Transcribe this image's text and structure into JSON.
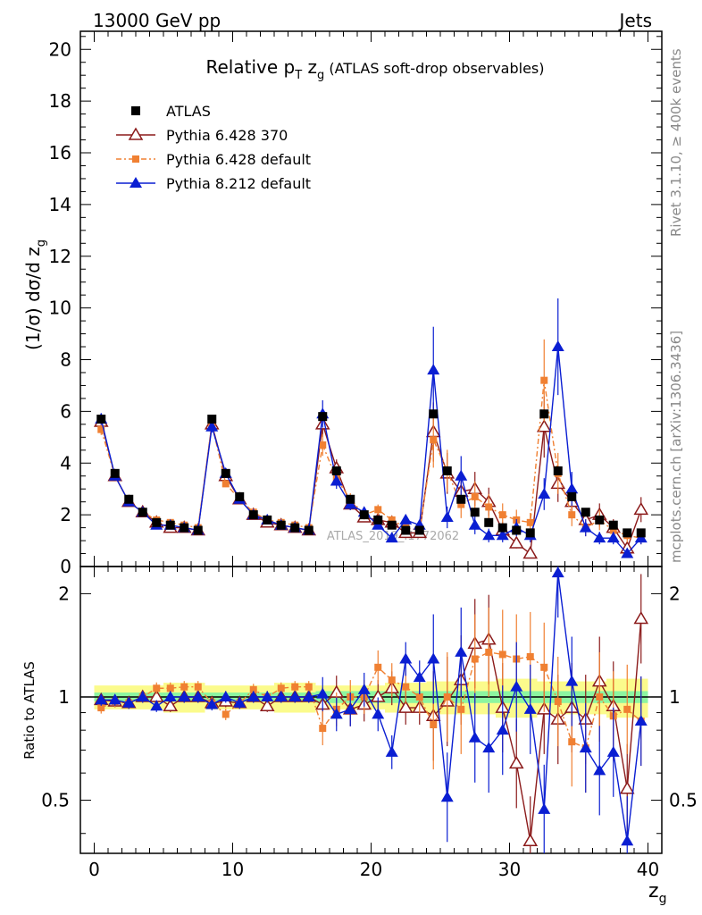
{
  "header": {
    "left": "13000 GeV pp",
    "right": "Jets",
    "side_rivet": "Rivet 3.1.10, ≥ 400k events",
    "side_mcplots": "mcplots.cern.ch [arXiv:1306.3436]",
    "watermark": "ATLAS_2019_I1772062"
  },
  "chart_data": {
    "type": "scatter",
    "title_main": "Relative p",
    "title_sub": "T",
    "title_zg": " z",
    "title_g": "g",
    "title_rest": " (ATLAS soft-drop observables)",
    "ylabel_main": "(1/σ) dσ/d z",
    "ylabel_sub": "g",
    "xlabel": "z",
    "xlabel_sub": "g",
    "ratio_ylabel": "Ratio to ATLAS",
    "xlim": [
      -1,
      41
    ],
    "ylim": [
      0,
      20.7
    ],
    "ratio_ylim": [
      0.35,
      2.4
    ],
    "x_ticks": [
      "0",
      "10",
      "20",
      "30",
      "40"
    ],
    "y_ticks": [
      "0",
      "2",
      "4",
      "6",
      "8",
      "10",
      "12",
      "14",
      "16",
      "18",
      "20"
    ],
    "ratio_ticks": [
      "0.5",
      "1",
      "2"
    ],
    "x": [
      0.5,
      1.5,
      2.5,
      3.5,
      4.5,
      5.5,
      6.5,
      7.5,
      8.5,
      9.5,
      10.5,
      11.5,
      12.5,
      13.5,
      14.5,
      15.5,
      16.5,
      17.5,
      18.5,
      19.5,
      20.5,
      21.5,
      22.5,
      23.5,
      24.5,
      25.5,
      26.5,
      27.5,
      28.5,
      29.5,
      30.5,
      31.5,
      32.5,
      33.5,
      34.5,
      35.5,
      36.5,
      37.5,
      38.5,
      39.5
    ],
    "series": [
      {
        "name": "ATLAS",
        "color": "#000000",
        "values": [
          5.7,
          3.6,
          2.6,
          2.1,
          1.7,
          1.6,
          1.5,
          1.4,
          5.7,
          3.6,
          2.7,
          2.0,
          1.8,
          1.6,
          1.5,
          1.4,
          5.8,
          3.7,
          2.6,
          2.0,
          1.8,
          1.6,
          1.4,
          1.4,
          5.9,
          3.7,
          2.6,
          2.1,
          1.7,
          1.5,
          1.4,
          1.3,
          5.9,
          3.7,
          2.7,
          2.1,
          1.8,
          1.6,
          1.3,
          1.3
        ]
      },
      {
        "name": "Pythia 6.428 370",
        "color": "#8b1a1a",
        "values": [
          5.6,
          3.5,
          2.5,
          2.1,
          1.7,
          1.5,
          1.5,
          1.4,
          5.5,
          3.5,
          2.6,
          2.0,
          1.7,
          1.6,
          1.5,
          1.4,
          5.5,
          3.8,
          2.4,
          1.9,
          1.8,
          1.7,
          1.3,
          1.3,
          5.2,
          3.6,
          2.9,
          3.0,
          2.5,
          1.4,
          0.9,
          0.5,
          5.4,
          3.2,
          2.5,
          1.8,
          2.0,
          1.5,
          0.7,
          2.2
        ]
      },
      {
        "name": "Pythia 6.428 default",
        "color": "#f08032",
        "values": [
          5.3,
          3.5,
          2.5,
          2.1,
          1.8,
          1.7,
          1.6,
          1.5,
          5.5,
          3.2,
          2.6,
          2.1,
          1.8,
          1.7,
          1.6,
          1.5,
          4.7,
          3.4,
          2.6,
          2.0,
          2.2,
          1.8,
          1.5,
          1.4,
          4.9,
          3.7,
          2.4,
          2.7,
          2.3,
          2.0,
          1.8,
          1.7,
          7.2,
          3.6,
          2.0,
          1.5,
          1.8,
          1.4,
          1.2,
          1.1
        ]
      },
      {
        "name": "Pythia 8.212 default",
        "color": "#0a1ed2",
        "values": [
          5.7,
          3.5,
          2.5,
          2.1,
          1.6,
          1.6,
          1.5,
          1.4,
          5.4,
          3.6,
          2.6,
          2.0,
          1.8,
          1.6,
          1.5,
          1.4,
          5.9,
          3.3,
          2.4,
          2.1,
          1.6,
          1.1,
          1.8,
          1.6,
          7.6,
          1.9,
          3.5,
          1.6,
          1.2,
          1.2,
          1.5,
          1.2,
          2.8,
          8.5,
          3.0,
          1.5,
          1.1,
          1.1,
          0.5,
          1.1
        ]
      }
    ],
    "ratios": {
      "Pythia 6.428 370": [
        0.98,
        0.97,
        0.96,
        1.0,
        1.0,
        0.94,
        1.0,
        1.0,
        0.96,
        0.97,
        0.96,
        1.0,
        0.94,
        1.0,
        1.0,
        1.0,
        0.95,
        1.03,
        0.92,
        0.95,
        1.0,
        1.06,
        0.93,
        0.93,
        0.88,
        0.97,
        1.12,
        1.43,
        1.47,
        0.93,
        0.64,
        0.38,
        0.92,
        0.86,
        0.93,
        0.86,
        1.11,
        0.94,
        0.54,
        1.69
      ],
      "Pythia 6.428 default": [
        0.93,
        0.97,
        0.96,
        1.0,
        1.06,
        1.06,
        1.07,
        1.07,
        0.96,
        0.89,
        0.96,
        1.05,
        1.0,
        1.06,
        1.07,
        1.07,
        0.81,
        0.92,
        1.0,
        1.0,
        1.22,
        1.12,
        1.07,
        1.0,
        0.83,
        1.0,
        0.92,
        1.29,
        1.35,
        1.33,
        1.29,
        1.31,
        1.22,
        0.97,
        0.74,
        0.71,
        1.0,
        0.88,
        0.92,
        0.85
      ],
      "Pythia 8.212 default": [
        0.98,
        0.98,
        0.96,
        1.0,
        0.94,
        1.0,
        1.0,
        1.0,
        0.95,
        1.0,
        0.96,
        1.0,
        1.0,
        1.0,
        1.0,
        1.0,
        1.02,
        0.89,
        0.92,
        1.05,
        0.89,
        0.69,
        1.29,
        1.14,
        1.29,
        0.51,
        1.35,
        0.76,
        0.71,
        0.8,
        1.07,
        0.92,
        0.47,
        2.3,
        1.11,
        0.71,
        0.61,
        0.69,
        0.38,
        0.85
      ]
    }
  }
}
